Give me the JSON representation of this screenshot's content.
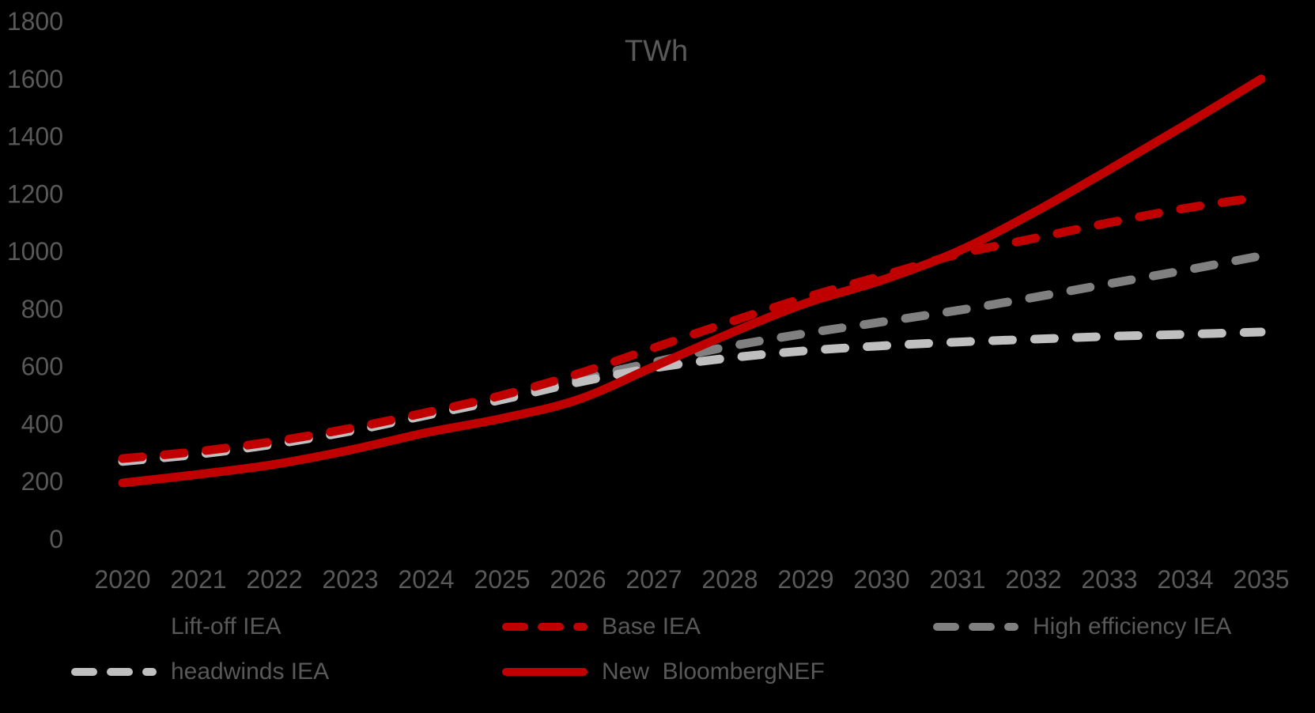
{
  "title": "TWh",
  "colors": {
    "background": "#000000",
    "axis_text": "#595959",
    "red": "#C00000",
    "dark_gray_line": "#808080",
    "light_gray_line": "#BFBFBF",
    "hidden_line": "#000000"
  },
  "chart_data": {
    "type": "line",
    "title": "TWh",
    "xlabel": "",
    "ylabel": "",
    "x": [
      "2020",
      "2021",
      "2022",
      "2023",
      "2024",
      "2025",
      "2026",
      "2027",
      "2028",
      "2029",
      "2030",
      "2031",
      "2032",
      "2033",
      "2034",
      "2035"
    ],
    "ylim": [
      0,
      1800
    ],
    "yticks": [
      0,
      200,
      400,
      600,
      800,
      1000,
      1200,
      1400,
      1600,
      1800
    ],
    "grid": false,
    "axes_visible": false,
    "legend_position": "bottom",
    "series": [
      {
        "name": "Lift-off IEA",
        "color": "#000000",
        "dash": true,
        "line_visible": false,
        "z": 0,
        "values": []
      },
      {
        "name": "Base IEA",
        "color": "#C00000",
        "dash": true,
        "line_visible": true,
        "z": 3,
        "values": [
          280,
          305,
          340,
          385,
          440,
          500,
          575,
          665,
          755,
          840,
          915,
          990,
          1045,
          1100,
          1150,
          1190
        ]
      },
      {
        "name": "High efficiency IEA",
        "color": "#808080",
        "dash": true,
        "line_visible": true,
        "z": 1,
        "values": [
          275,
          300,
          335,
          380,
          435,
          495,
          555,
          615,
          670,
          715,
          755,
          795,
          840,
          888,
          935,
          985
        ]
      },
      {
        "name": "headwinds IEA",
        "color": "#BFBFBF",
        "dash": true,
        "line_visible": true,
        "z": 2,
        "values": [
          270,
          295,
          330,
          375,
          430,
          485,
          545,
          595,
          630,
          655,
          672,
          685,
          695,
          705,
          712,
          720
        ]
      },
      {
        "name": "New  BloombergNEF",
        "color": "#C00000",
        "dash": false,
        "line_visible": true,
        "z": 4,
        "values": [
          195,
          225,
          260,
          310,
          370,
          420,
          485,
          600,
          715,
          820,
          900,
          1000,
          1135,
          1285,
          1440,
          1600
        ]
      }
    ],
    "legend_rows": [
      [
        "Lift-off IEA",
        "Base IEA",
        "High efficiency IEA"
      ],
      [
        "headwinds IEA",
        "New  BloombergNEF"
      ]
    ]
  }
}
